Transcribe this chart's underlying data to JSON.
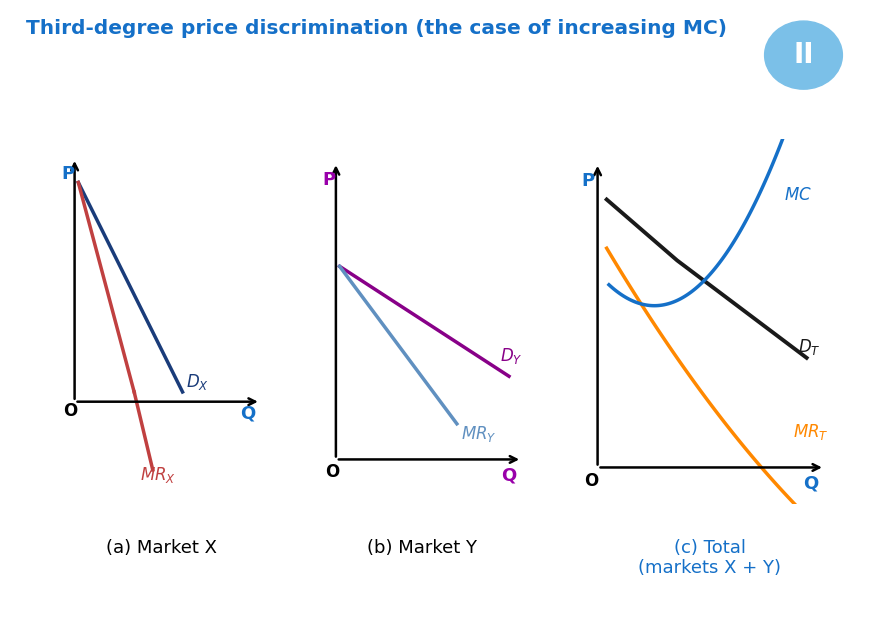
{
  "title": "Third-degree price discrimination (the case of increasing MC)",
  "title_color": "#1570C8",
  "background_color": "#ffffff",
  "panel_a_label": "(a) Market X",
  "panel_b_label": "(b) Market Y",
  "panel_c_label": "(c) Total\n(markets X + Y)",
  "ax_label_color_a": "#1570C8",
  "ax_label_color_b": "#9900AA",
  "ax_label_color_c": "#1570C8",
  "Dx_color": "#1A3C7A",
  "MRx_color": "#C04040",
  "Dy_color": "#880088",
  "MRy_color": "#6090C0",
  "DT_color": "#1a1a1a",
  "MRT_color": "#FF8800",
  "MC_color": "#1570C8",
  "pause_circle_color": "#7BC0E8",
  "pause_icon_color": "#ffffff"
}
